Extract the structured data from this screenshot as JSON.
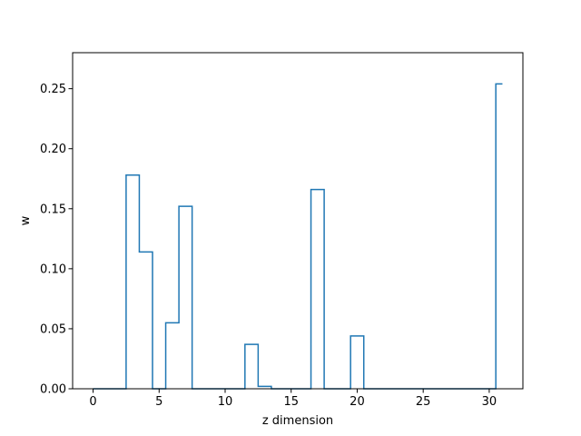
{
  "chart_data": {
    "type": "line",
    "drawstyle": "steps-mid",
    "title": "",
    "xlabel": "z dimension",
    "ylabel": "w",
    "xlim": [
      -1.55,
      32.55
    ],
    "ylim": [
      0,
      0.28
    ],
    "xticks": [
      0,
      5,
      10,
      15,
      20,
      25,
      30
    ],
    "xtick_labels": [
      "0",
      "5",
      "10",
      "15",
      "20",
      "25",
      "30"
    ],
    "yticks": [
      0.0,
      0.05,
      0.1,
      0.15,
      0.2,
      0.25
    ],
    "ytick_labels": [
      "0.00",
      "0.05",
      "0.10",
      "0.15",
      "0.20",
      "0.25"
    ],
    "grid": false,
    "legend": false,
    "series_color": "#1f77b4",
    "x": [
      0,
      1,
      2,
      3,
      4,
      5,
      6,
      7,
      8,
      9,
      10,
      11,
      12,
      13,
      14,
      15,
      16,
      17,
      18,
      19,
      20,
      21,
      22,
      23,
      24,
      25,
      26,
      27,
      28,
      29,
      30,
      31
    ],
    "series": [
      {
        "values": [
          0,
          0,
          0,
          0.178,
          0.114,
          0,
          0.055,
          0.152,
          0,
          0,
          0,
          0,
          0.037,
          0.002,
          0,
          0,
          0,
          0.166,
          0,
          0,
          0.044,
          0,
          0,
          0,
          0,
          0,
          0,
          0,
          0,
          0,
          0,
          0.254
        ]
      }
    ]
  }
}
